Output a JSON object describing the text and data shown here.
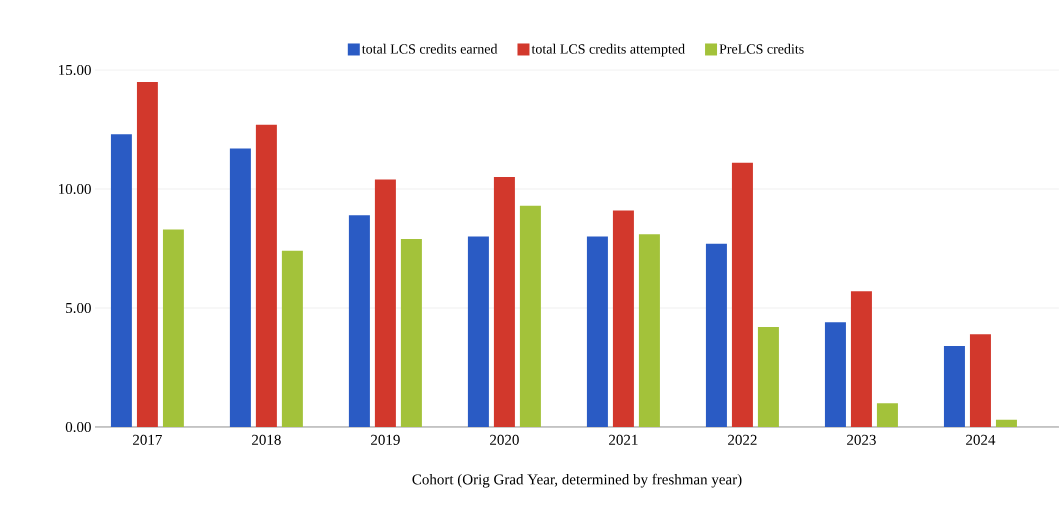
{
  "chart_data": {
    "type": "bar",
    "xlabel": "Cohort (Orig Grad Year, determined by freshman year)",
    "categories": [
      "2017",
      "2018",
      "2019",
      "2020",
      "2021",
      "2022",
      "2023",
      "2024"
    ],
    "series": [
      {
        "name": "total LCS credits earned",
        "color": "#2a5bc4",
        "values": [
          12.3,
          11.7,
          8.9,
          8.0,
          8.0,
          7.7,
          4.4,
          3.4
        ]
      },
      {
        "name": "total LCS credits attempted",
        "color": "#d2382c",
        "values": [
          14.5,
          12.7,
          10.4,
          10.5,
          9.1,
          11.1,
          5.7,
          3.9
        ]
      },
      {
        "name": "PreLCS credits",
        "color": "#a3c23a",
        "values": [
          8.3,
          7.4,
          7.9,
          9.3,
          8.1,
          4.2,
          1.0,
          0.3
        ]
      }
    ],
    "ylim": [
      0,
      15
    ],
    "yticks": [
      {
        "value": 0,
        "label": "0.00"
      },
      {
        "value": 5,
        "label": "5.00"
      },
      {
        "value": 10,
        "label": "10.00"
      },
      {
        "value": 15,
        "label": "15.00"
      }
    ],
    "grid": "y",
    "legend": "top"
  }
}
